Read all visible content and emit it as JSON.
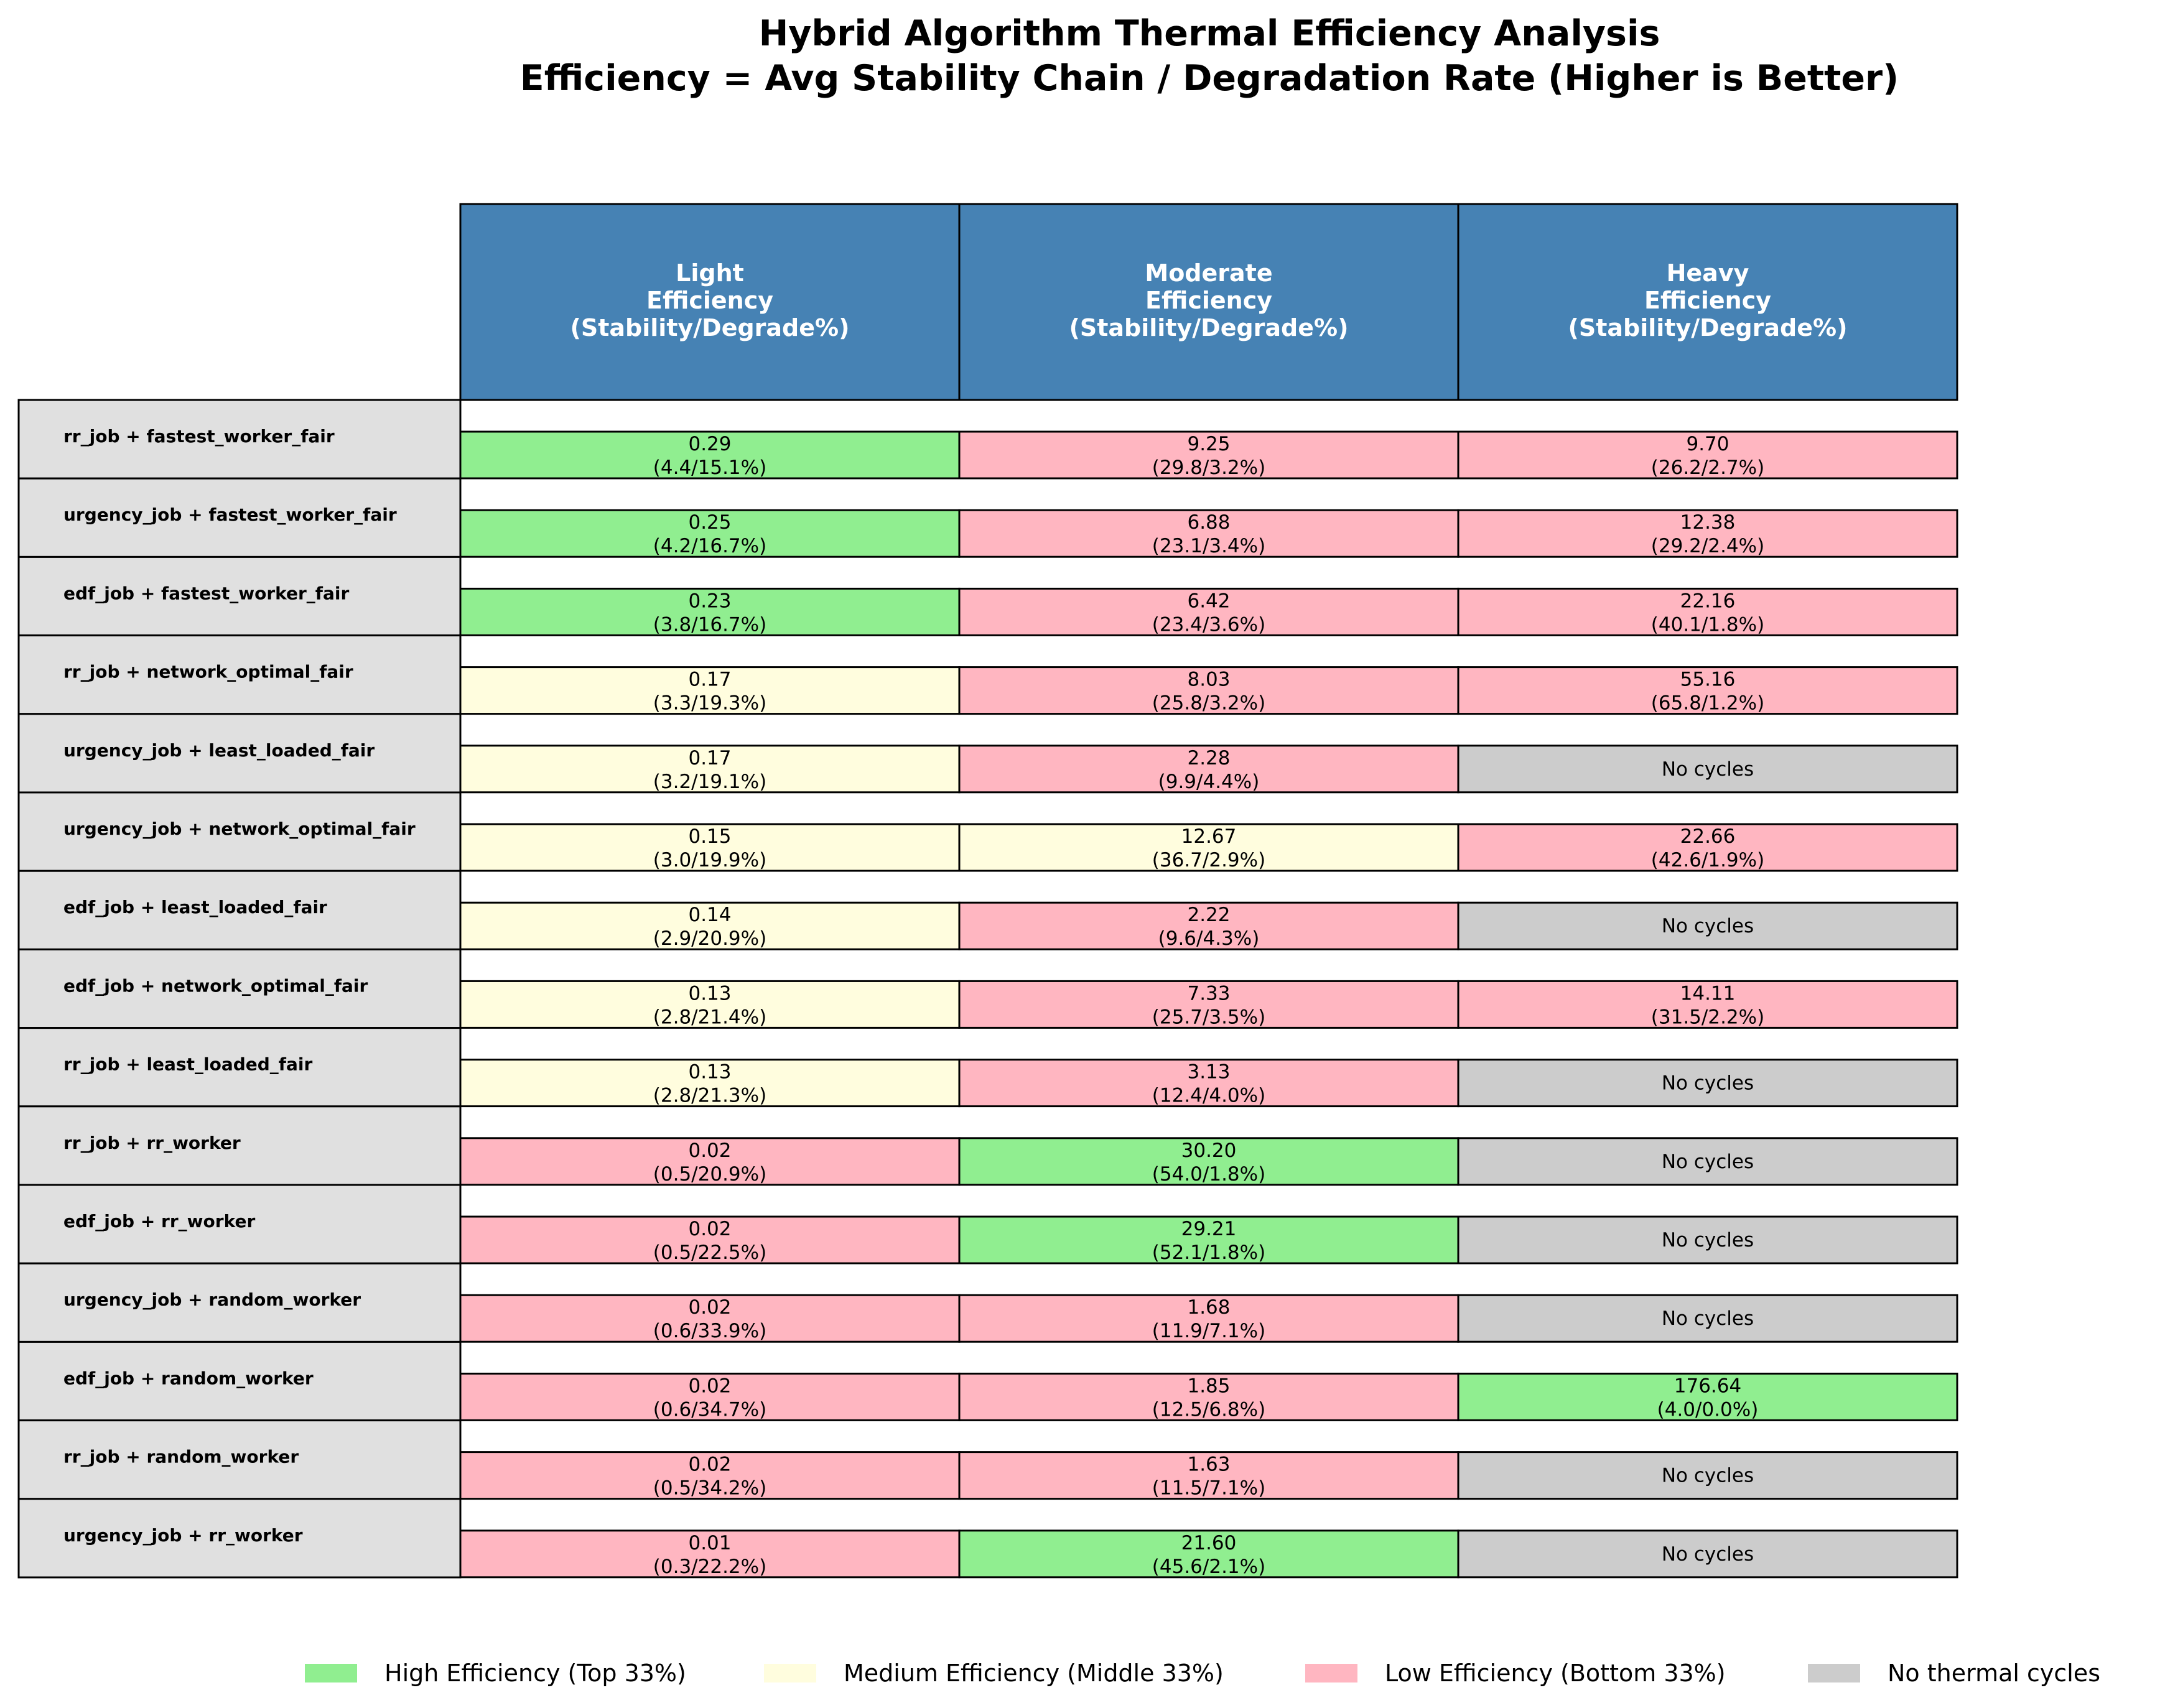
{
  "title": {
    "line1": "Hybrid Algorithm Thermal Efficiency Analysis",
    "line2": "Efficiency = Avg Stability Chain / Degradation Rate (Higher is Better)"
  },
  "colors": {
    "header": "#4682b4",
    "row_label": "#e0e0e0",
    "high": "#90ee90",
    "medium": "#fffdde",
    "low": "#ffb6c1",
    "none": "#cccccc",
    "border": "#000000"
  },
  "chart_data": {
    "type": "table",
    "columns": [
      [
        "Light",
        "Efficiency",
        "(Stability/Degrade%)"
      ],
      [
        "Moderate",
        "Efficiency",
        "(Stability/Degrade%)"
      ],
      [
        "Heavy",
        "Efficiency",
        "(Stability/Degrade%)"
      ]
    ],
    "rows": [
      {
        "label": "rr_job + fastest_worker_fair",
        "cells": [
          {
            "eff": "0.29",
            "detail": "(4.4/15.1%)",
            "tier": "high"
          },
          {
            "eff": "9.25",
            "detail": "(29.8/3.2%)",
            "tier": "low"
          },
          {
            "eff": "9.70",
            "detail": "(26.2/2.7%)",
            "tier": "low"
          }
        ]
      },
      {
        "label": "urgency_job + fastest_worker_fair",
        "cells": [
          {
            "eff": "0.25",
            "detail": "(4.2/16.7%)",
            "tier": "high"
          },
          {
            "eff": "6.88",
            "detail": "(23.1/3.4%)",
            "tier": "low"
          },
          {
            "eff": "12.38",
            "detail": "(29.2/2.4%)",
            "tier": "low"
          }
        ]
      },
      {
        "label": "edf_job + fastest_worker_fair",
        "cells": [
          {
            "eff": "0.23",
            "detail": "(3.8/16.7%)",
            "tier": "high"
          },
          {
            "eff": "6.42",
            "detail": "(23.4/3.6%)",
            "tier": "low"
          },
          {
            "eff": "22.16",
            "detail": "(40.1/1.8%)",
            "tier": "low"
          }
        ]
      },
      {
        "label": "rr_job + network_optimal_fair",
        "cells": [
          {
            "eff": "0.17",
            "detail": "(3.3/19.3%)",
            "tier": "medium"
          },
          {
            "eff": "8.03",
            "detail": "(25.8/3.2%)",
            "tier": "low"
          },
          {
            "eff": "55.16",
            "detail": "(65.8/1.2%)",
            "tier": "low"
          }
        ]
      },
      {
        "label": "urgency_job + least_loaded_fair",
        "cells": [
          {
            "eff": "0.17",
            "detail": "(3.2/19.1%)",
            "tier": "medium"
          },
          {
            "eff": "2.28",
            "detail": "(9.9/4.4%)",
            "tier": "low"
          },
          {
            "eff": "No cycles",
            "detail": "",
            "tier": "none"
          }
        ]
      },
      {
        "label": "urgency_job + network_optimal_fair",
        "cells": [
          {
            "eff": "0.15",
            "detail": "(3.0/19.9%)",
            "tier": "medium"
          },
          {
            "eff": "12.67",
            "detail": "(36.7/2.9%)",
            "tier": "medium"
          },
          {
            "eff": "22.66",
            "detail": "(42.6/1.9%)",
            "tier": "low"
          }
        ]
      },
      {
        "label": "edf_job + least_loaded_fair",
        "cells": [
          {
            "eff": "0.14",
            "detail": "(2.9/20.9%)",
            "tier": "medium"
          },
          {
            "eff": "2.22",
            "detail": "(9.6/4.3%)",
            "tier": "low"
          },
          {
            "eff": "No cycles",
            "detail": "",
            "tier": "none"
          }
        ]
      },
      {
        "label": "edf_job + network_optimal_fair",
        "cells": [
          {
            "eff": "0.13",
            "detail": "(2.8/21.4%)",
            "tier": "medium"
          },
          {
            "eff": "7.33",
            "detail": "(25.7/3.5%)",
            "tier": "low"
          },
          {
            "eff": "14.11",
            "detail": "(31.5/2.2%)",
            "tier": "low"
          }
        ]
      },
      {
        "label": "rr_job + least_loaded_fair",
        "cells": [
          {
            "eff": "0.13",
            "detail": "(2.8/21.3%)",
            "tier": "medium"
          },
          {
            "eff": "3.13",
            "detail": "(12.4/4.0%)",
            "tier": "low"
          },
          {
            "eff": "No cycles",
            "detail": "",
            "tier": "none"
          }
        ]
      },
      {
        "label": "rr_job + rr_worker",
        "cells": [
          {
            "eff": "0.02",
            "detail": "(0.5/20.9%)",
            "tier": "low"
          },
          {
            "eff": "30.20",
            "detail": "(54.0/1.8%)",
            "tier": "high"
          },
          {
            "eff": "No cycles",
            "detail": "",
            "tier": "none"
          }
        ]
      },
      {
        "label": "edf_job + rr_worker",
        "cells": [
          {
            "eff": "0.02",
            "detail": "(0.5/22.5%)",
            "tier": "low"
          },
          {
            "eff": "29.21",
            "detail": "(52.1/1.8%)",
            "tier": "high"
          },
          {
            "eff": "No cycles",
            "detail": "",
            "tier": "none"
          }
        ]
      },
      {
        "label": "urgency_job + random_worker",
        "cells": [
          {
            "eff": "0.02",
            "detail": "(0.6/33.9%)",
            "tier": "low"
          },
          {
            "eff": "1.68",
            "detail": "(11.9/7.1%)",
            "tier": "low"
          },
          {
            "eff": "No cycles",
            "detail": "",
            "tier": "none"
          }
        ]
      },
      {
        "label": "edf_job + random_worker",
        "cells": [
          {
            "eff": "0.02",
            "detail": "(0.6/34.7%)",
            "tier": "low"
          },
          {
            "eff": "1.85",
            "detail": "(12.5/6.8%)",
            "tier": "low"
          },
          {
            "eff": "176.64",
            "detail": "(4.0/0.0%)",
            "tier": "high"
          }
        ]
      },
      {
        "label": "rr_job + random_worker",
        "cells": [
          {
            "eff": "0.02",
            "detail": "(0.5/34.2%)",
            "tier": "low"
          },
          {
            "eff": "1.63",
            "detail": "(11.5/7.1%)",
            "tier": "low"
          },
          {
            "eff": "No cycles",
            "detail": "",
            "tier": "none"
          }
        ]
      },
      {
        "label": "urgency_job + rr_worker",
        "cells": [
          {
            "eff": "0.01",
            "detail": "(0.3/22.2%)",
            "tier": "low"
          },
          {
            "eff": "21.60",
            "detail": "(45.6/2.1%)",
            "tier": "high"
          },
          {
            "eff": "No cycles",
            "detail": "",
            "tier": "none"
          }
        ]
      }
    ],
    "legend": [
      {
        "label": "High Efficiency (Top 33%)",
        "tier": "high"
      },
      {
        "label": "Medium Efficiency (Middle 33%)",
        "tier": "medium"
      },
      {
        "label": "Low Efficiency (Bottom 33%)",
        "tier": "low"
      },
      {
        "label": "No thermal cycles",
        "tier": "none"
      }
    ]
  }
}
